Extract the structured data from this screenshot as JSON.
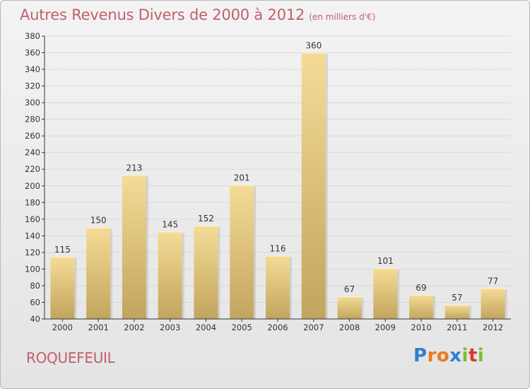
{
  "header": {
    "title": "Autres Revenus Divers de 2000 à 2012",
    "subtitle": "(en milliers d'€)"
  },
  "footer": {
    "commune": "ROQUEFEUIL",
    "brand": {
      "letters": [
        "P",
        "r",
        "o",
        "x",
        "i",
        "t",
        "i"
      ],
      "colors": [
        "#2f7fd0",
        "#e87b1c",
        "#e87b1c",
        "#2f7fd0",
        "#7bbf2a",
        "#d93a2a",
        "#7bbf2a"
      ]
    }
  },
  "colors": {
    "bar_light": "#f5dc96",
    "bar_dark": "#c2a45e",
    "axis": "#333333",
    "grid": "#d9d9d9"
  },
  "chart_data": {
    "type": "bar",
    "title": "Autres Revenus Divers de 2000 à 2012",
    "subtitle": "(en milliers d'€)",
    "categories": [
      "2000",
      "2001",
      "2002",
      "2003",
      "2004",
      "2005",
      "2006",
      "2007",
      "2008",
      "2009",
      "2010",
      "2011",
      "2012"
    ],
    "values": [
      115,
      150,
      213,
      145,
      152,
      201,
      116,
      360,
      67,
      101,
      69,
      57,
      77
    ],
    "ylim": [
      40,
      380
    ],
    "yticks": [
      40,
      60,
      80,
      100,
      120,
      140,
      160,
      180,
      200,
      220,
      240,
      260,
      280,
      300,
      320,
      340,
      360,
      380
    ],
    "grid": true
  }
}
